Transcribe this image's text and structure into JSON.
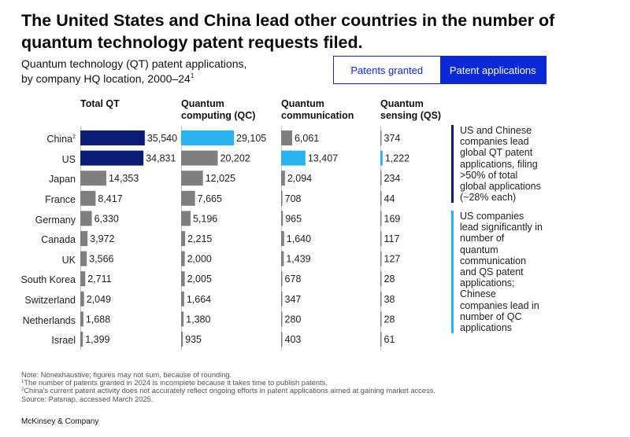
{
  "headline": "The United States and China lead other countries in the number of quantum technology patent requests filed.",
  "subtitle": {
    "line1": "Quantum technology (QT) patent applications,",
    "line2": "by company HQ location, 2000–24",
    "footnote_marker": "1"
  },
  "toggle": {
    "granted_label": "Patents granted",
    "applications_label": "Patent applications",
    "selected": "applications"
  },
  "colors": {
    "dark_navy": "#0b1c77",
    "light_blue": "#29b2f0",
    "gray": "#7f7f7f",
    "accent_blue": "#0a2ad8"
  },
  "chart_data": {
    "type": "bar",
    "orientation": "horizontal",
    "categories": [
      "China",
      "US",
      "Japan",
      "France",
      "Germany",
      "Canada",
      "UK",
      "South Korea",
      "Switzerland",
      "Netherlands",
      "Israel"
    ],
    "category_footnotes": {
      "China": "2"
    },
    "series": [
      {
        "name": "Total QT",
        "header_line1": "",
        "header_line2": "Total QT",
        "axis_max": 38000,
        "values": [
          35540,
          34831,
          14353,
          8417,
          6330,
          3972,
          3566,
          2711,
          2049,
          1688,
          1399
        ],
        "labels": [
          "35,540",
          "34,831",
          "14,353",
          "8,417",
          "6,330",
          "3,972",
          "3,566",
          "2,711",
          "2,049",
          "1,688",
          "1,399"
        ],
        "highlight": [
          0,
          1
        ],
        "highlight_color": "dark_navy"
      },
      {
        "name": "Quantum computing (QC)",
        "header_line1": "Quantum",
        "header_line2": "computing (QC)",
        "axis_max": 38000,
        "values": [
          29105,
          20202,
          12025,
          7665,
          5196,
          2215,
          2000,
          2005,
          1664,
          1380,
          935
        ],
        "labels": [
          "29,105",
          "20,202",
          "12,025",
          "7,665",
          "5,196",
          "2,215",
          "2,000",
          "2,005",
          "1,664",
          "1,380",
          "935"
        ],
        "highlight": [
          0
        ],
        "highlight_color": "light_blue"
      },
      {
        "name": "Quantum communication",
        "header_line1": "Quantum",
        "header_line2": "communication",
        "axis_max": 38000,
        "values": [
          6061,
          13407,
          2094,
          708,
          965,
          1640,
          1439,
          678,
          347,
          280,
          403
        ],
        "labels": [
          "6,061",
          "13,407",
          "2,094",
          "708",
          "965",
          "1,640",
          "1,439",
          "678",
          "347",
          "280",
          "403"
        ],
        "highlight": [
          1
        ],
        "highlight_color": "light_blue"
      },
      {
        "name": "Quantum sensing (QS)",
        "header_line1": "Quantum",
        "header_line2": "sensing (QS)",
        "axis_max": 38000,
        "values": [
          374,
          1222,
          234,
          44,
          169,
          117,
          127,
          28,
          38,
          28,
          61
        ],
        "labels": [
          "374",
          "1,222",
          "234",
          "44",
          "169",
          "117",
          "127",
          "28",
          "38",
          "28",
          "61"
        ],
        "highlight": [
          1
        ],
        "highlight_color": "light_blue"
      }
    ]
  },
  "callouts": [
    {
      "text": "US and Chinese companies lead global QT patent applications, filing >50% of total global applications (~28% each)",
      "color": "dark_navy"
    },
    {
      "text": "US companies lead significantly in number of quantum communication and QS patent applications; Chinese companies lead in number of QC applications",
      "color": "light_blue"
    }
  ],
  "notes": {
    "note": "Note: Nonexhaustive; figures may not sum, because of rounding.",
    "fn1_marker": "1",
    "fn1": "The number of patents granted in 2024 is incomplete because it takes time to publish patents.",
    "fn2_marker": "2",
    "fn2": "China's current patent activity does not accurately reflect ongoing efforts in patent applications aimed at gaining market access.",
    "source": "Source: Patsnap, accessed March 2025."
  },
  "brand": "McKinsey & Company"
}
